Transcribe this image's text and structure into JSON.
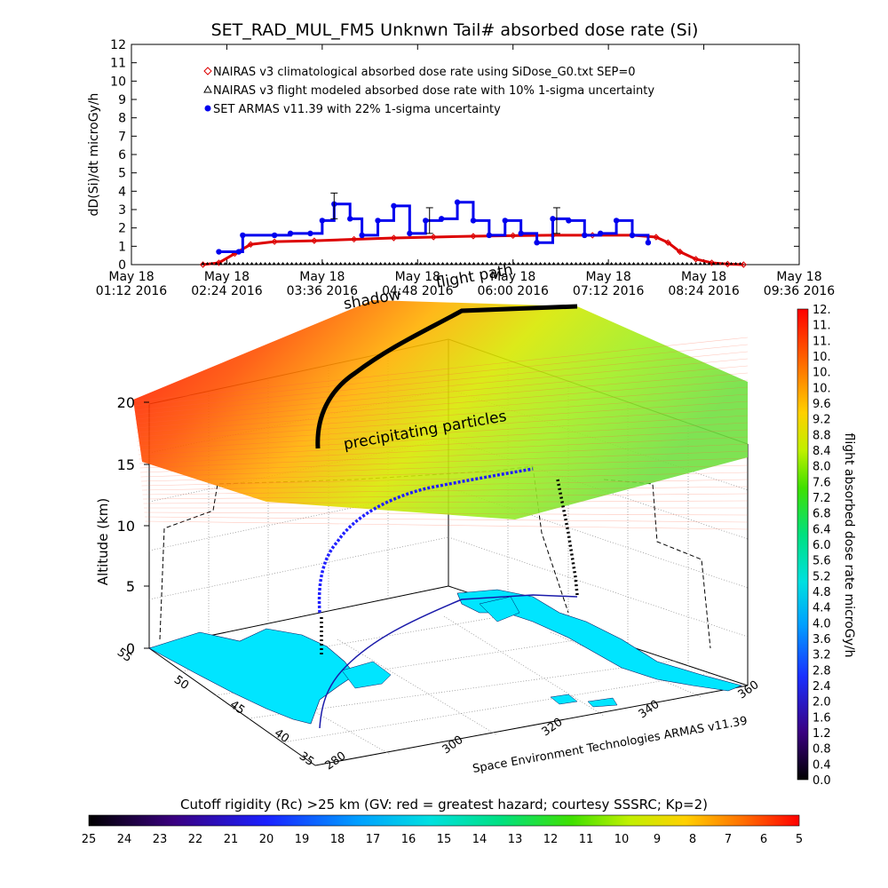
{
  "chart_data": [
    {
      "type": "line",
      "title": "SET_RAD_MUL_FM5 Unknwn Tail#  absorbed dose rate (Si)",
      "ylabel": "dD(Si)/dt microGy/h",
      "xlabel": "",
      "ylim": [
        0,
        12
      ],
      "yticks": [
        "0",
        "1",
        "2",
        "3",
        "4",
        "5",
        "6",
        "7",
        "8",
        "9",
        "10",
        "11",
        "12"
      ],
      "xticks": [
        {
          "l1": "May 18",
          "l2": "01:12 2016"
        },
        {
          "l1": "May 18",
          "l2": "02:24 2016"
        },
        {
          "l1": "May 18",
          "l2": "03:36 2016"
        },
        {
          "l1": "May 18",
          "l2": "04:48 2016"
        },
        {
          "l1": "May 18",
          "l2": "06:00 2016"
        },
        {
          "l1": "May 18",
          "l2": "07:12 2016"
        },
        {
          "l1": "May 18",
          "l2": "08:24 2016"
        },
        {
          "l1": "May 18",
          "l2": "09:36 2016"
        }
      ],
      "xlim_hours": [
        1.2,
        9.6
      ],
      "legend_position": "top-left",
      "series": [
        {
          "name": "NAIRAS v3 climatological absorbed dose rate using SiDose_G0.txt SEP=0",
          "color": "#dd0000",
          "marker": "diamond",
          "x": [
            2.1,
            2.3,
            2.5,
            2.7,
            3.0,
            3.5,
            4.0,
            4.5,
            5.0,
            5.5,
            6.0,
            6.5,
            7.0,
            7.5,
            7.8,
            7.95,
            8.1,
            8.3,
            8.5,
            8.7,
            8.9
          ],
          "values": [
            0,
            0.1,
            0.6,
            1.1,
            1.25,
            1.3,
            1.38,
            1.45,
            1.5,
            1.55,
            1.58,
            1.6,
            1.6,
            1.6,
            1.5,
            1.2,
            0.7,
            0.3,
            0.1,
            0.03,
            0
          ]
        },
        {
          "name": "NAIRAS v3 flight modeled absorbed dose rate with 10% 1-sigma uncertainty",
          "color": "#000000",
          "marker": "triangle",
          "x": [
            2.1,
            8.9
          ],
          "values": [
            0,
            0
          ]
        },
        {
          "name": "SET ARMAS v11.39 with 22% 1-sigma uncertainty",
          "color": "#0000ee",
          "marker": "circle",
          "x": [
            2.3,
            2.55,
            2.6,
            3.0,
            3.2,
            3.45,
            3.6,
            3.75,
            3.95,
            4.1,
            4.3,
            4.5,
            4.7,
            4.9,
            5.1,
            5.3,
            5.5,
            5.7,
            5.9,
            6.1,
            6.3,
            6.5,
            6.7,
            6.9,
            7.1,
            7.3,
            7.5,
            7.7
          ],
          "values": [
            0.7,
            0.7,
            1.6,
            1.6,
            1.7,
            1.7,
            2.4,
            3.3,
            2.5,
            1.6,
            2.4,
            3.2,
            1.7,
            2.4,
            2.5,
            3.4,
            2.4,
            1.6,
            2.4,
            1.7,
            1.2,
            2.5,
            2.4,
            1.6,
            1.7,
            2.4,
            1.6,
            1.2
          ]
        }
      ]
    },
    {
      "type": "scatter",
      "title": "",
      "zlabel": "Altitude (km)",
      "ztick_labels": [
        "0",
        "5",
        "10",
        "15",
        "20"
      ],
      "lat_labels": [
        "35",
        "40",
        "45",
        "50",
        "55"
      ],
      "lon_labels": [
        "280",
        "300",
        "320",
        "340",
        "360"
      ],
      "annotations": [
        "precipitating particles",
        "shadow",
        "flight path"
      ],
      "footer_credit": "Space Environment Technologies ARMAS v11.39",
      "colorbar": {
        "label": "flight absorbed dose rate microGy/h",
        "labels": [
          "0.0",
          "0.4",
          "0.8",
          "1.2",
          "1.6",
          "2.0",
          "2.4",
          "2.8",
          "3.2",
          "3.6",
          "4.0",
          "4.4",
          "4.8",
          "5.2",
          "5.6",
          "6.0",
          "6.4",
          "6.8",
          "7.2",
          "7.6",
          "8.0",
          "8.4",
          "8.8",
          "9.2",
          "9.6",
          "10.",
          "10.",
          "10.",
          "11.",
          "11.",
          "12."
        ]
      },
      "rigidity_bar": {
        "label": "Cutoff rigidity (Rc) >25 km (GV: red = greatest hazard; courtesy SSSRC; Kp=2)",
        "labels": [
          "25",
          "24",
          "23",
          "22",
          "21",
          "20",
          "19",
          "18",
          "17",
          "16",
          "15",
          "14",
          "13",
          "12",
          "11",
          "10",
          "9",
          "8",
          "7",
          "6",
          "5"
        ]
      }
    }
  ]
}
